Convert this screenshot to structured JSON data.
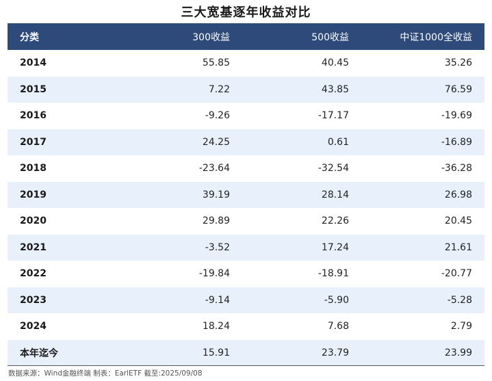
{
  "title": "三大宽基逐年收益对比",
  "table": {
    "headers": [
      "分类",
      "300收益",
      "500收益",
      "中证1000全收益"
    ],
    "rows": [
      [
        "2014",
        "55.85",
        "40.45",
        "35.26"
      ],
      [
        "2015",
        "7.22",
        "43.85",
        "76.59"
      ],
      [
        "2016",
        "-9.26",
        "-17.17",
        "-19.69"
      ],
      [
        "2017",
        "24.25",
        "0.61",
        "-16.89"
      ],
      [
        "2018",
        "-23.64",
        "-32.54",
        "-36.28"
      ],
      [
        "2019",
        "39.19",
        "28.14",
        "26.98"
      ],
      [
        "2020",
        "29.89",
        "22.26",
        "20.45"
      ],
      [
        "2021",
        "-3.52",
        "17.24",
        "21.61"
      ],
      [
        "2022",
        "-19.84",
        "-18.91",
        "-20.77"
      ],
      [
        "2023",
        "-9.14",
        "-5.90",
        "-5.28"
      ],
      [
        "2024",
        "18.24",
        "7.68",
        "2.79"
      ],
      [
        "本年迄今",
        "15.91",
        "23.79",
        "23.99"
      ]
    ]
  },
  "source": "数据来源：Wind金融终端 制表：EarlETF 截至:2025/09/08",
  "colors": {
    "header_bg": "#2e4a7a",
    "stripe": "#e8f1fb"
  }
}
